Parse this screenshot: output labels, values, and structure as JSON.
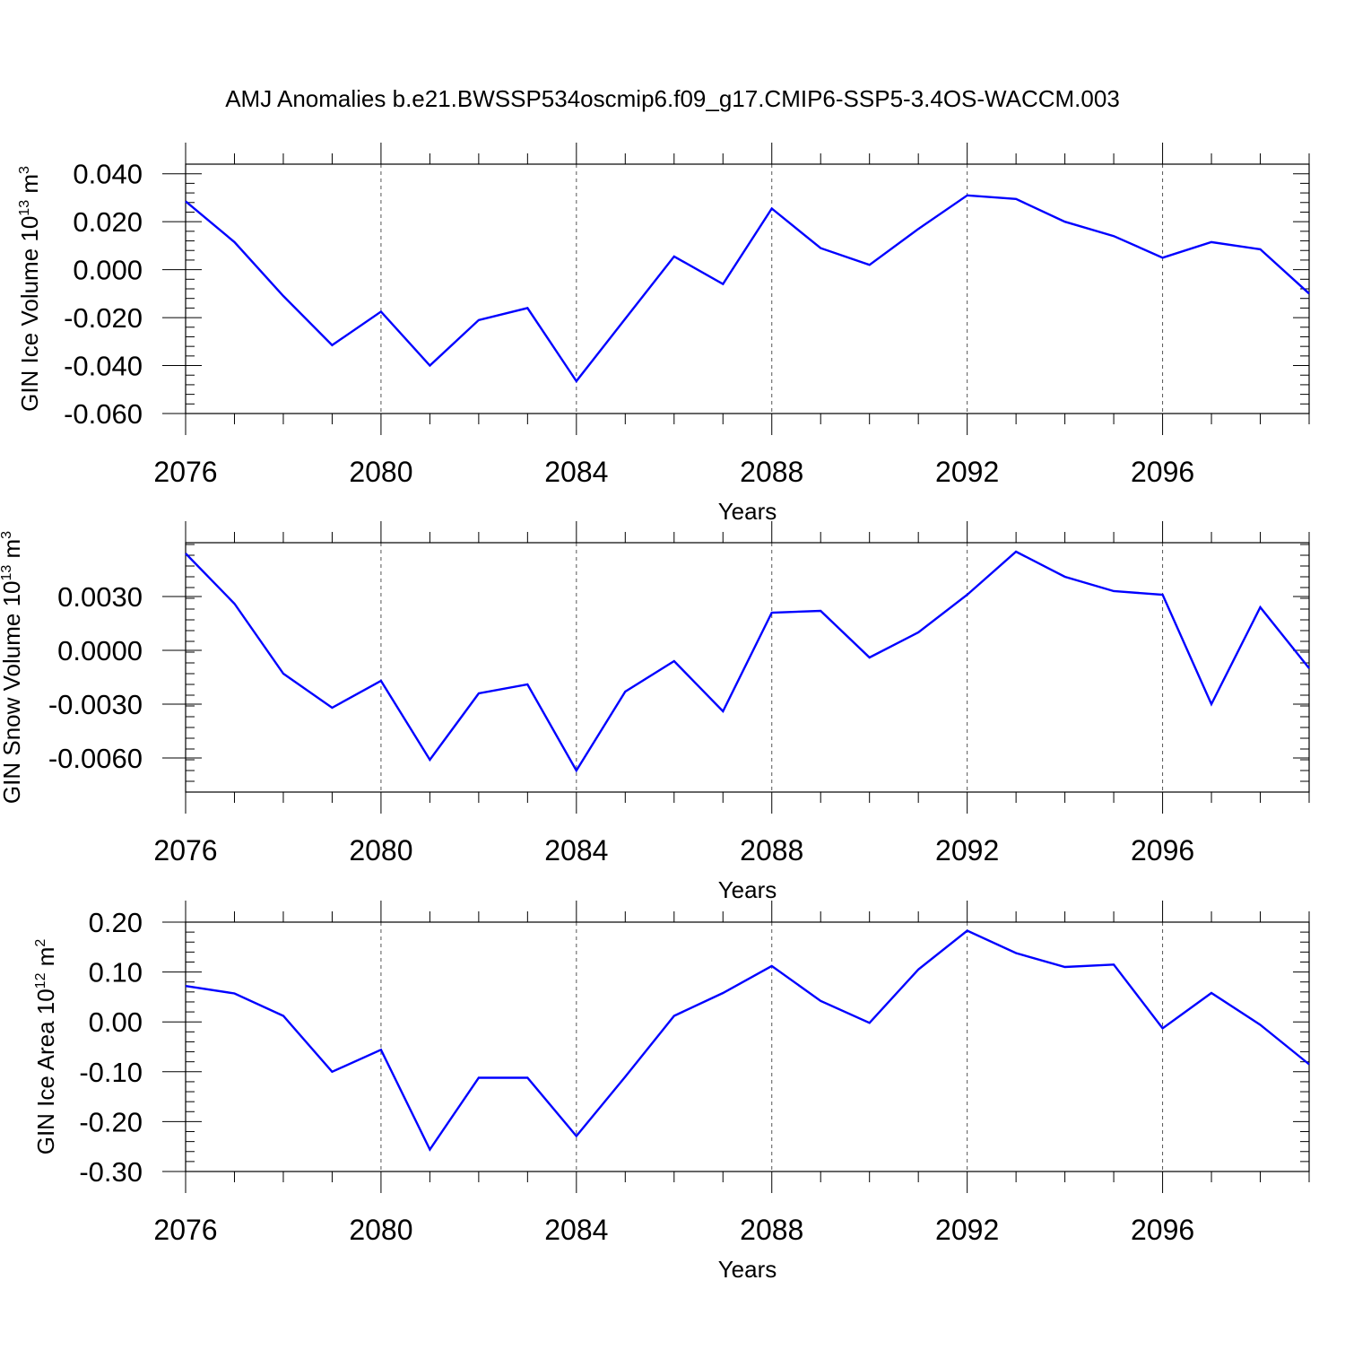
{
  "figure_title": "AMJ Anomalies b.e21.BWSSP534oscmip6.f09_g17.CMIP6-SSP5-3.4OS-WACCM.003",
  "colors": {
    "line": "#0000ff",
    "axis": "#000000",
    "grid": "#555555",
    "background": "#ffffff"
  },
  "chart_data": [
    {
      "type": "line",
      "title": "",
      "xlabel": "Years",
      "ylabel": {
        "main": "GIN Ice Volume 10",
        "sup": "13",
        "unit": " m",
        "unit_sup": "3"
      },
      "xlim": [
        2076,
        2099
      ],
      "ylim": [
        -0.06,
        0.044
      ],
      "xticks": [
        "2076",
        "2080",
        "2084",
        "2088",
        "2092",
        "2096"
      ],
      "yticks": [
        "0.040",
        "0.020",
        "0.000",
        "-0.020",
        "-0.040",
        "-0.060"
      ],
      "grid": "vertical dashed at major x ticks",
      "x": [
        2076,
        2077,
        2078,
        2079,
        2080,
        2081,
        2082,
        2083,
        2084,
        2085,
        2086,
        2087,
        2088,
        2089,
        2090,
        2091,
        2092,
        2093,
        2094,
        2095,
        2096,
        2097,
        2098,
        2099
      ],
      "y": [
        0.0285,
        0.0115,
        -0.011,
        -0.0315,
        -0.0175,
        -0.04,
        -0.021,
        -0.016,
        -0.0465,
        -0.0205,
        0.0055,
        -0.006,
        0.0255,
        0.009,
        0.002,
        0.017,
        0.031,
        0.0295,
        0.02,
        0.014,
        0.005,
        0.0115,
        0.0085,
        -0.01
      ]
    },
    {
      "type": "line",
      "title": "",
      "xlabel": "Years",
      "ylabel": {
        "main": "GIN Snow Volume 10",
        "sup": "13",
        "unit": " m",
        "unit_sup": "3"
      },
      "xlim": [
        2076,
        2099
      ],
      "ylim": [
        -0.0079,
        0.006
      ],
      "xticks": [
        "2076",
        "2080",
        "2084",
        "2088",
        "2092",
        "2096"
      ],
      "yticks": [
        "0.0030",
        "0.0000",
        "-0.0030",
        "-0.0060"
      ],
      "grid": "vertical dashed at major x ticks",
      "x": [
        2076,
        2077,
        2078,
        2079,
        2080,
        2081,
        2082,
        2083,
        2084,
        2085,
        2086,
        2087,
        2088,
        2089,
        2090,
        2091,
        2092,
        2093,
        2094,
        2095,
        2096,
        2097,
        2098,
        2099
      ],
      "y": [
        0.0054,
        0.0026,
        -0.0013,
        -0.0032,
        -0.0017,
        -0.0061,
        -0.0024,
        -0.0019,
        -0.0067,
        -0.0023,
        -0.0006,
        -0.0034,
        0.0021,
        0.0022,
        -0.0004,
        0.001,
        0.0031,
        0.0055,
        0.0041,
        0.0033,
        0.0031,
        -0.003,
        0.0024,
        -0.001
      ]
    },
    {
      "type": "line",
      "title": "",
      "xlabel": "Years",
      "ylabel": {
        "main": "GIN Ice Area 10",
        "sup": "12",
        "unit": " m",
        "unit_sup": "2"
      },
      "xlim": [
        2076,
        2099
      ],
      "ylim": [
        -0.3,
        0.2
      ],
      "xticks": [
        "2076",
        "2080",
        "2084",
        "2088",
        "2092",
        "2096"
      ],
      "yticks": [
        "0.20",
        "0.10",
        "0.00",
        "-0.10",
        "-0.20",
        "-0.30"
      ],
      "grid": "vertical dashed at major x ticks",
      "x": [
        2076,
        2077,
        2078,
        2079,
        2080,
        2081,
        2082,
        2083,
        2084,
        2085,
        2086,
        2087,
        2088,
        2089,
        2090,
        2091,
        2092,
        2093,
        2094,
        2095,
        2096,
        2097,
        2098,
        2099
      ],
      "y": [
        0.072,
        0.057,
        0.012,
        -0.1,
        -0.056,
        -0.256,
        -0.112,
        -0.112,
        -0.229,
        -0.11,
        0.012,
        0.058,
        0.112,
        0.042,
        -0.002,
        0.105,
        0.183,
        0.138,
        0.11,
        0.115,
        -0.013,
        0.058,
        -0.006,
        -0.085
      ]
    }
  ]
}
